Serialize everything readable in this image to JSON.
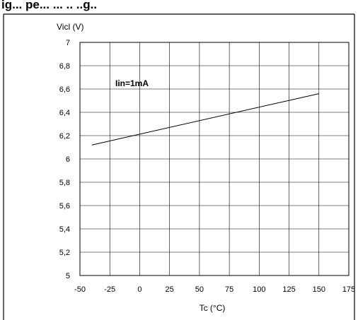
{
  "page": {
    "heading_fragment": "ig...      pe...        ... ..   ..g.."
  },
  "chart_data": {
    "type": "line",
    "title": "",
    "xlabel": "Tc (°C)",
    "ylabel": "Vicl (V)",
    "xlim": [
      -50,
      175
    ],
    "ylim": [
      5,
      7
    ],
    "x_ticks": [
      -50,
      -25,
      0,
      25,
      50,
      75,
      100,
      125,
      150,
      175
    ],
    "x_tick_labels": [
      "-50",
      "-25",
      "0",
      "25",
      "50",
      "75",
      "100",
      "125",
      "150",
      "175"
    ],
    "y_ticks": [
      5,
      5.2,
      5.4,
      5.6,
      5.8,
      6,
      6.2,
      6.4,
      6.6,
      6.8,
      7
    ],
    "y_tick_labels": [
      "5",
      "5,2",
      "5,4",
      "5,6",
      "5,8",
      "6",
      "6,2",
      "6,4",
      "6,6",
      "6,8",
      "7"
    ],
    "grid": true,
    "annotation": "Iin=1mA",
    "series": [
      {
        "x": [
          -40,
          150
        ],
        "y": [
          6.12,
          6.56
        ]
      }
    ],
    "colors": {
      "line": "#000000",
      "grid": "#000000",
      "frame": "#000000"
    }
  }
}
